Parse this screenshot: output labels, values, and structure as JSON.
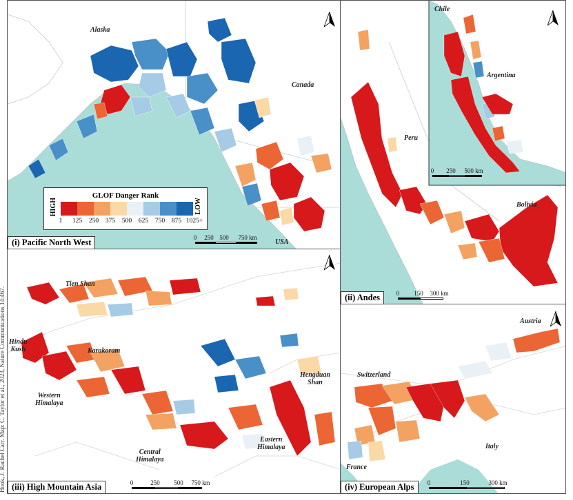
{
  "credit": "Hook, J. Rachel Carr. Map: C. Taylor et al., 2023, Nature Communications 14:467.",
  "colors": {
    "ocean": "#aadcd8",
    "land": "#ffffff",
    "border": "#cfcfcf",
    "rank_1": "#d7191c",
    "rank_125": "#ec6535",
    "rank_250": "#f4a261",
    "rank_375": "#fbd9a6",
    "rank_500": "#e9f0f6",
    "rank_625": "#a6cbe6",
    "rank_750": "#4a90c8",
    "rank_875": "#1a66b0"
  },
  "legend": {
    "title": "GLOF Danger Rank",
    "high_label": "HIGH",
    "low_label": "LOW",
    "ticks": [
      "1",
      "125",
      "250",
      "375",
      "500",
      "625",
      "750",
      "875",
      "1025+"
    ]
  },
  "panels": {
    "pnw": {
      "title": "(i) Pacific North West",
      "labels": {
        "alaska": "Alaska",
        "canada": "Canada",
        "usa": "USA"
      },
      "scale_ticks": [
        "0",
        "250",
        "500",
        "750 km"
      ],
      "north_icon": "north-arrow-icon"
    },
    "andes": {
      "title": "(ii) Andes",
      "labels": {
        "peru": "Peru",
        "bolivia": "Bolivia",
        "chile": "Chile",
        "argentina": "Argentina"
      },
      "scale_ticks": [
        "0",
        "150",
        "300 km"
      ],
      "inset_scale_ticks": [
        "0",
        "250",
        "500 km"
      ],
      "north_icon": "north-arrow-icon"
    },
    "hma": {
      "title": "(iii) High Mountain Asia",
      "labels": {
        "tien_shan": "Tien Shan",
        "hindu_kush": "Hindu\nKush",
        "karakoram": "Karakoram",
        "western_himalaya": "Western\nHimalaya",
        "central_himalaya": "Central\nHimalaya",
        "eastern_himalaya": "Eastern\nHimalaya",
        "hengduan_shan": "Hengduan\nShan"
      },
      "scale_ticks": [
        "0",
        "250",
        "500",
        "750 km"
      ],
      "north_icon": "north-arrow-icon"
    },
    "alps": {
      "title": "(iv) European Alps",
      "labels": {
        "austria": "Austria",
        "switzerland": "Switzerland",
        "italy": "Italy",
        "france": "France"
      },
      "scale_ticks": [
        "0",
        "150",
        "300 km"
      ],
      "north_icon": "north-arrow-icon"
    }
  }
}
